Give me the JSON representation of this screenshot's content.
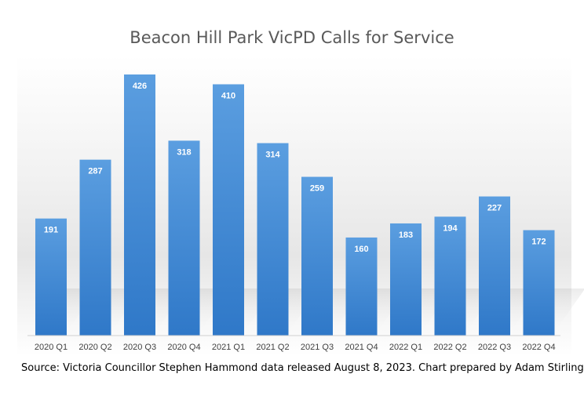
{
  "chart_data": {
    "type": "bar",
    "title": "Beacon Hill Park VicPD Calls for Service",
    "categories": [
      "2020 Q1",
      "2020 Q2",
      "2020 Q3",
      "2020 Q4",
      "2021 Q1",
      "2021 Q2",
      "2021 Q3",
      "2021 Q4",
      "2022 Q1",
      "2022 Q2",
      "2022 Q3",
      "2022 Q4"
    ],
    "values": [
      191,
      287,
      426,
      318,
      410,
      314,
      259,
      160,
      183,
      194,
      227,
      172
    ],
    "xlabel": "",
    "ylabel": "",
    "ylim": [
      0,
      426
    ],
    "grid": false,
    "legend": "none",
    "bar_color": "#4a8fd6",
    "source": "Source: Victoria Councillor Stephen Hammond data released August 8, 2023. Chart prepared by Adam Stirling"
  }
}
